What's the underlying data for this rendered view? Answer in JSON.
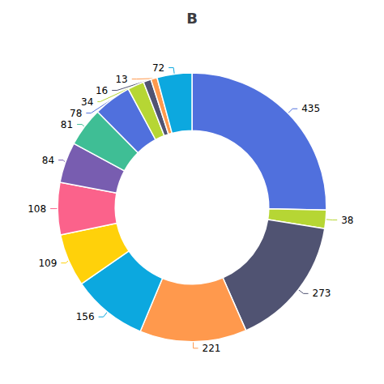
{
  "chart_data": {
    "type": "donut",
    "title": "B",
    "categories": [
      "435",
      "38",
      "273",
      "221",
      "156",
      "109",
      "108",
      "84",
      "81",
      "78",
      "34",
      "16",
      "13",
      "72"
    ],
    "values": [
      435,
      38,
      273,
      221,
      156,
      109,
      108,
      84,
      81,
      78,
      34,
      16,
      13,
      72
    ],
    "data_labels": true,
    "legend": false
  }
}
